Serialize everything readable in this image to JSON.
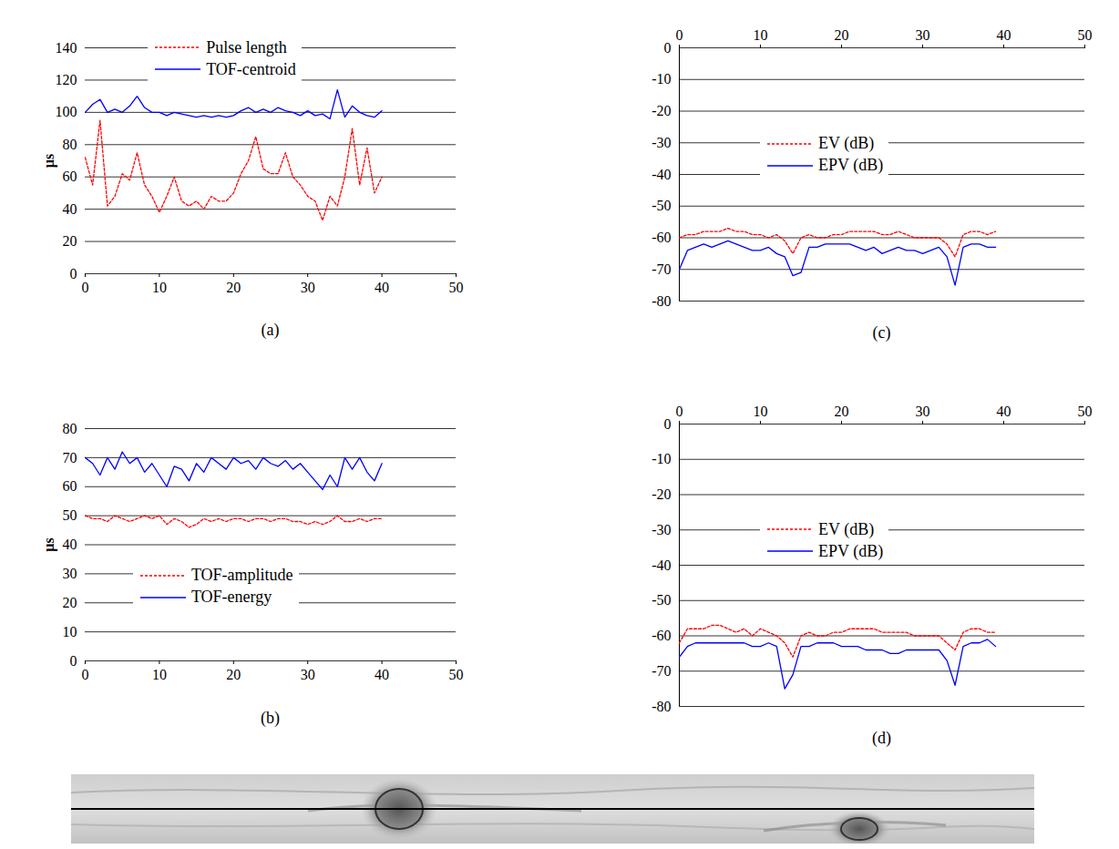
{
  "chart_data": [
    {
      "type": "line",
      "title": "(a)",
      "ylabel": "µs",
      "x": [
        0,
        1,
        2,
        3,
        4,
        5,
        6,
        7,
        8,
        9,
        10,
        11,
        12,
        13,
        14,
        15,
        16,
        17,
        18,
        19,
        20,
        21,
        22,
        23,
        24,
        25,
        26,
        27,
        28,
        29,
        30,
        31,
        32,
        33,
        34,
        35,
        36,
        37,
        38,
        39,
        40
      ],
      "series": [
        {
          "name": "Pulse length",
          "color": "#ff0000",
          "line_style": "dotted",
          "values": [
            72,
            55,
            95,
            42,
            48,
            62,
            58,
            75,
            55,
            48,
            38,
            48,
            60,
            45,
            42,
            45,
            40,
            48,
            45,
            45,
            50,
            62,
            70,
            85,
            65,
            62,
            62,
            75,
            60,
            55,
            48,
            45,
            33,
            48,
            42,
            60,
            90,
            55,
            78,
            50,
            60
          ]
        },
        {
          "name": "TOF-centroid",
          "color": "#0000ff",
          "line_style": "solid",
          "values": [
            100,
            105,
            108,
            100,
            102,
            100,
            104,
            110,
            103,
            100,
            100,
            98,
            100,
            99,
            98,
            97,
            98,
            97,
            98,
            97,
            98,
            101,
            103,
            100,
            102,
            100,
            103,
            101,
            100,
            98,
            101,
            98,
            99,
            96,
            114,
            97,
            104,
            100,
            98,
            97,
            101
          ]
        }
      ],
      "xlim": [
        0,
        50
      ],
      "xticks": [
        0,
        10,
        20,
        30,
        40,
        50
      ],
      "ylim": [
        0,
        140
      ],
      "yticks": [
        0,
        20,
        40,
        60,
        80,
        100,
        120,
        140
      ],
      "grid": true,
      "legend": "top"
    },
    {
      "type": "line",
      "title": "(b)",
      "ylabel": "µs",
      "x": [
        0,
        1,
        2,
        3,
        4,
        5,
        6,
        7,
        8,
        9,
        10,
        11,
        12,
        13,
        14,
        15,
        16,
        17,
        18,
        19,
        20,
        21,
        22,
        23,
        24,
        25,
        26,
        27,
        28,
        29,
        30,
        31,
        32,
        33,
        34,
        35,
        36,
        37,
        38,
        39,
        40
      ],
      "series": [
        {
          "name": "TOF-amplitude",
          "color": "#ff0000",
          "line_style": "dotted",
          "values": [
            50,
            49,
            49,
            48,
            50,
            49,
            48,
            49,
            50,
            49,
            50,
            47,
            49,
            48,
            46,
            47,
            49,
            48,
            49,
            48,
            49,
            49,
            48,
            49,
            49,
            48,
            49,
            49,
            48,
            48,
            47,
            48,
            47,
            48,
            50,
            48,
            48,
            49,
            48,
            49,
            49
          ]
        },
        {
          "name": "TOF-energy",
          "color": "#0000ff",
          "line_style": "solid",
          "values": [
            70,
            68,
            64,
            70,
            66,
            72,
            68,
            70,
            65,
            68,
            64,
            60,
            67,
            66,
            62,
            68,
            65,
            70,
            68,
            66,
            70,
            68,
            69,
            66,
            70,
            68,
            67,
            69,
            66,
            68,
            65,
            62,
            59,
            64,
            60,
            70,
            66,
            70,
            65,
            62,
            68
          ]
        }
      ],
      "xlim": [
        0,
        50
      ],
      "xticks": [
        0,
        10,
        20,
        30,
        40,
        50
      ],
      "ylim": [
        0,
        80
      ],
      "yticks": [
        0,
        10,
        20,
        30,
        40,
        50,
        60,
        70,
        80
      ],
      "grid": true,
      "legend": "bottom"
    },
    {
      "type": "line",
      "title": "(c)",
      "x": [
        0,
        1,
        2,
        3,
        4,
        5,
        6,
        7,
        8,
        9,
        10,
        11,
        12,
        13,
        14,
        15,
        16,
        17,
        18,
        19,
        20,
        21,
        22,
        23,
        24,
        25,
        26,
        27,
        28,
        29,
        30,
        31,
        32,
        33,
        34,
        35,
        36,
        37,
        38,
        39
      ],
      "series": [
        {
          "name": "EV (dB)",
          "color": "#ff0000",
          "line_style": "dotted",
          "values": [
            -60,
            -59,
            -59,
            -58,
            -58,
            -58,
            -57,
            -58,
            -58,
            -59,
            -59,
            -60,
            -59,
            -61,
            -65,
            -60,
            -59,
            -60,
            -60,
            -59,
            -59,
            -58,
            -58,
            -58,
            -58,
            -59,
            -59,
            -58,
            -59,
            -60,
            -60,
            -60,
            -60,
            -62,
            -66,
            -59,
            -58,
            -58,
            -59,
            -58
          ]
        },
        {
          "name": "EPV (dB)",
          "color": "#0000ff",
          "line_style": "solid",
          "values": [
            -70,
            -64,
            -63,
            -62,
            -63,
            -62,
            -61,
            -62,
            -63,
            -64,
            -64,
            -63,
            -65,
            -66,
            -72,
            -71,
            -63,
            -63,
            -62,
            -62,
            -62,
            -62,
            -63,
            -64,
            -63,
            -65,
            -64,
            -63,
            -64,
            -64,
            -65,
            -64,
            -63,
            -66,
            -75,
            -63,
            -62,
            -62,
            -63,
            -63
          ]
        }
      ],
      "xlim": [
        0,
        50
      ],
      "xticks": [
        0,
        10,
        20,
        30,
        40,
        50
      ],
      "ylim": [
        -80,
        0
      ],
      "yticks": [
        -80,
        -70,
        -60,
        -50,
        -40,
        -30,
        -20,
        -10,
        0
      ],
      "grid": true,
      "legend": "left"
    },
    {
      "type": "line",
      "title": "(d)",
      "x": [
        0,
        1,
        2,
        3,
        4,
        5,
        6,
        7,
        8,
        9,
        10,
        11,
        12,
        13,
        14,
        15,
        16,
        17,
        18,
        19,
        20,
        21,
        22,
        23,
        24,
        25,
        26,
        27,
        28,
        29,
        30,
        31,
        32,
        33,
        34,
        35,
        36,
        37,
        38,
        39
      ],
      "series": [
        {
          "name": "EV (dB)",
          "color": "#ff0000",
          "line_style": "dotted",
          "values": [
            -62,
            -58,
            -58,
            -58,
            -57,
            -57,
            -58,
            -59,
            -58,
            -60,
            -58,
            -59,
            -60,
            -62,
            -66,
            -60,
            -59,
            -60,
            -60,
            -59,
            -59,
            -58,
            -58,
            -58,
            -58,
            -59,
            -59,
            -59,
            -59,
            -60,
            -60,
            -60,
            -60,
            -62,
            -64,
            -59,
            -58,
            -58,
            -59,
            -59
          ]
        },
        {
          "name": "EPV (dB)",
          "color": "#0000ff",
          "line_style": "solid",
          "values": [
            -66,
            -63,
            -62,
            -62,
            -62,
            -62,
            -62,
            -62,
            -62,
            -63,
            -63,
            -62,
            -63,
            -75,
            -71,
            -63,
            -63,
            -62,
            -62,
            -62,
            -63,
            -63,
            -63,
            -64,
            -64,
            -64,
            -65,
            -65,
            -64,
            -64,
            -64,
            -64,
            -64,
            -67,
            -74,
            -63,
            -62,
            -62,
            -61,
            -63
          ]
        }
      ],
      "xlim": [
        0,
        50
      ],
      "xticks": [
        0,
        10,
        20,
        30,
        40,
        50
      ],
      "ylim": [
        -80,
        0
      ],
      "yticks": [
        -80,
        -70,
        -60,
        -50,
        -40,
        -30,
        -20,
        -10,
        0
      ],
      "grid": true,
      "legend": "left"
    }
  ]
}
